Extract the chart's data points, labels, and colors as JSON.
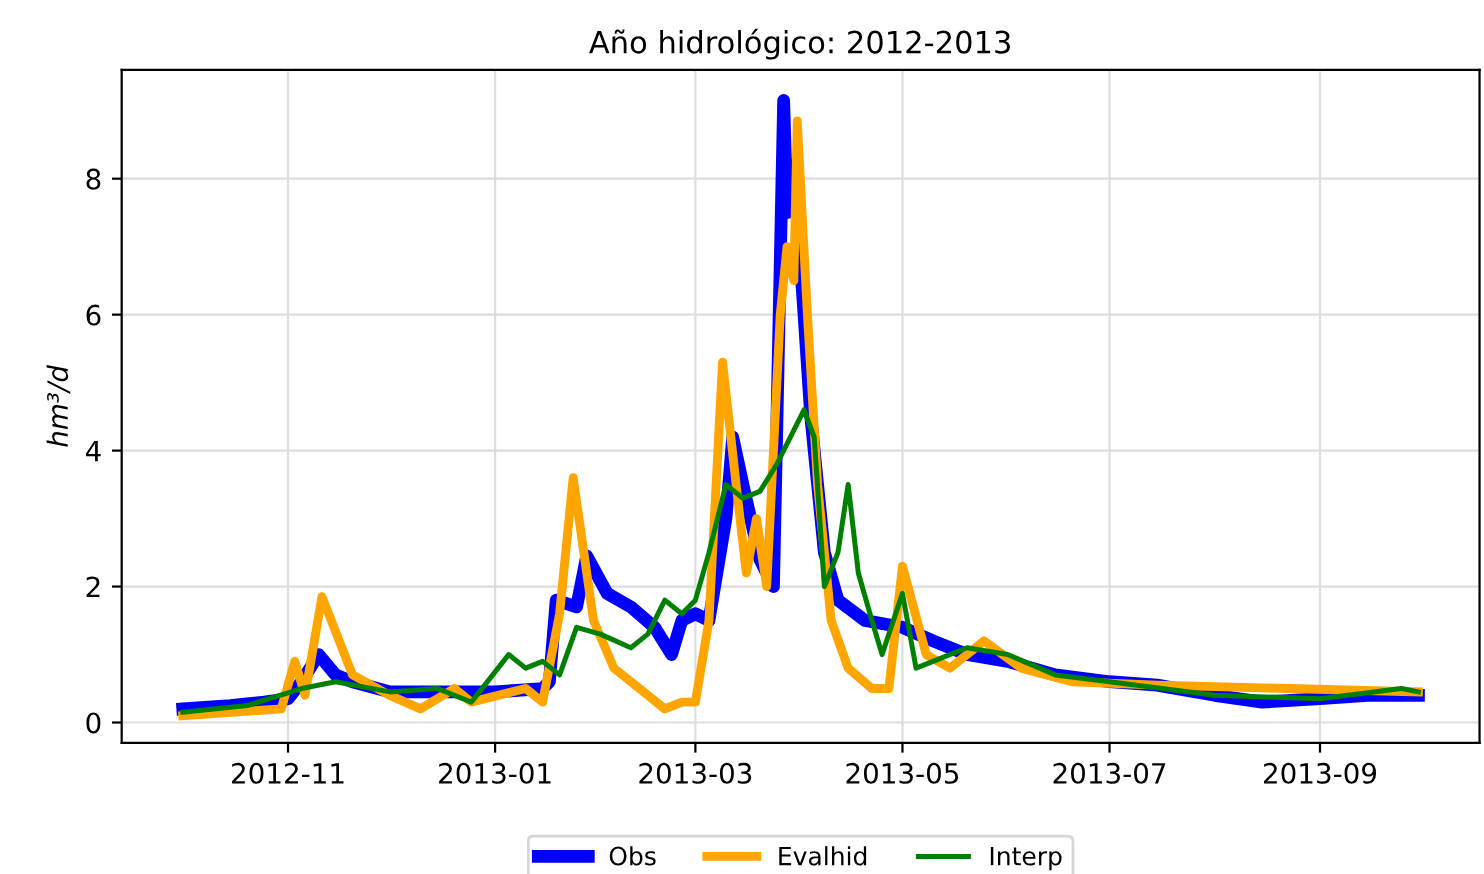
{
  "chart_data": {
    "type": "line",
    "title": "Año hidrológico: 2012-2013",
    "ylabel": "hm³/d",
    "xlim": [
      "2012-09-13",
      "2013-10-18"
    ],
    "xticks": [
      "2012-11",
      "2013-01",
      "2013-03",
      "2013-05",
      "2013-07",
      "2013-09"
    ],
    "ylim": [
      -0.3,
      9.6
    ],
    "yticks": [
      0,
      2,
      4,
      6,
      8
    ],
    "grid": true,
    "legend": "bottom",
    "line_style": "solid",
    "marker": "none",
    "series": [
      {
        "name": "Obs",
        "color": "#0000ff",
        "x": [
          "2012-10-01",
          "2012-10-15",
          "2012-10-25",
          "2012-11-01",
          "2012-11-05",
          "2012-11-10",
          "2012-11-15",
          "2012-11-20",
          "2012-12-01",
          "2012-12-15",
          "2013-01-01",
          "2013-01-15",
          "2013-01-17",
          "2013-01-19",
          "2013-01-25",
          "2013-01-28",
          "2013-02-03",
          "2013-02-10",
          "2013-02-17",
          "2013-02-22",
          "2013-02-25",
          "2013-03-01",
          "2013-03-05",
          "2013-03-10",
          "2013-03-12",
          "2013-03-15",
          "2013-03-20",
          "2013-03-24",
          "2013-03-27",
          "2013-03-28",
          "2013-03-30",
          "2013-04-02",
          "2013-04-04",
          "2013-04-08",
          "2013-04-12",
          "2013-04-20",
          "2013-05-01",
          "2013-05-10",
          "2013-05-20",
          "2013-06-01",
          "2013-06-15",
          "2013-07-01",
          "2013-07-15",
          "2013-08-01",
          "2013-08-15",
          "2013-09-01",
          "2013-09-15",
          "2013-09-30"
        ],
        "values": [
          0.2,
          0.25,
          0.3,
          0.35,
          0.6,
          1.0,
          0.7,
          0.6,
          0.45,
          0.45,
          0.45,
          0.5,
          0.6,
          1.8,
          1.7,
          2.45,
          1.9,
          1.7,
          1.4,
          1.0,
          1.5,
          1.6,
          1.5,
          3.0,
          4.2,
          3.5,
          2.4,
          2.0,
          9.15,
          7.5,
          8.2,
          6.0,
          4.5,
          2.5,
          1.8,
          1.5,
          1.4,
          1.2,
          1.0,
          0.9,
          0.7,
          0.6,
          0.55,
          0.4,
          0.3,
          0.35,
          0.4,
          0.4
        ]
      },
      {
        "name": "Evalhid",
        "color": "#ffa500",
        "x": [
          "2012-10-01",
          "2012-10-30",
          "2012-11-03",
          "2012-11-06",
          "2012-11-11",
          "2012-11-20",
          "2012-12-01",
          "2012-12-10",
          "2012-12-20",
          "2012-12-25",
          "2013-01-10",
          "2013-01-15",
          "2013-01-20",
          "2013-01-24",
          "2013-01-30",
          "2013-02-05",
          "2013-02-15",
          "2013-02-20",
          "2013-02-25",
          "2013-03-01",
          "2013-03-05",
          "2013-03-09",
          "2013-03-13",
          "2013-03-16",
          "2013-03-19",
          "2013-03-22",
          "2013-03-26",
          "2013-03-28",
          "2013-03-30",
          "2013-03-31",
          "2013-04-03",
          "2013-04-06",
          "2013-04-10",
          "2013-04-15",
          "2013-04-22",
          "2013-04-27",
          "2013-05-01",
          "2013-05-08",
          "2013-05-15",
          "2013-05-25",
          "2013-06-05",
          "2013-06-20",
          "2013-07-15",
          "2013-09-30"
        ],
        "values": [
          0.1,
          0.2,
          0.9,
          0.4,
          1.85,
          0.7,
          0.4,
          0.2,
          0.5,
          0.3,
          0.5,
          0.3,
          1.6,
          3.6,
          1.5,
          0.8,
          0.4,
          0.2,
          0.3,
          0.3,
          1.5,
          5.3,
          3.5,
          2.2,
          3.0,
          2.0,
          6.0,
          7.0,
          6.5,
          8.85,
          6.0,
          3.5,
          1.5,
          0.8,
          0.5,
          0.5,
          2.3,
          1.0,
          0.8,
          1.2,
          0.8,
          0.6,
          0.55,
          0.45
        ]
      },
      {
        "name": "Interp",
        "color": "#008000",
        "x": [
          "2012-10-01",
          "2012-10-20",
          "2012-11-05",
          "2012-11-15",
          "2012-12-01",
          "2012-12-15",
          "2012-12-25",
          "2013-01-05",
          "2013-01-10",
          "2013-01-15",
          "2013-01-20",
          "2013-01-25",
          "2013-02-01",
          "2013-02-10",
          "2013-02-15",
          "2013-02-20",
          "2013-02-25",
          "2013-03-01",
          "2013-03-05",
          "2013-03-10",
          "2013-03-15",
          "2013-03-20",
          "2013-03-25",
          "2013-04-02",
          "2013-04-05",
          "2013-04-08",
          "2013-04-12",
          "2013-04-15",
          "2013-04-18",
          "2013-04-22",
          "2013-04-25",
          "2013-05-01",
          "2013-05-05",
          "2013-05-10",
          "2013-05-20",
          "2013-06-01",
          "2013-06-15",
          "2013-07-01",
          "2013-08-01",
          "2013-09-01",
          "2013-09-25",
          "2013-09-30"
        ],
        "values": [
          0.15,
          0.25,
          0.5,
          0.6,
          0.45,
          0.5,
          0.3,
          1.0,
          0.8,
          0.9,
          0.7,
          1.4,
          1.3,
          1.1,
          1.3,
          1.8,
          1.6,
          1.8,
          2.5,
          3.5,
          3.3,
          3.4,
          3.8,
          4.6,
          4.2,
          2.0,
          2.5,
          3.5,
          2.2,
          1.5,
          1.0,
          1.9,
          0.8,
          0.9,
          1.1,
          1.0,
          0.7,
          0.6,
          0.4,
          0.35,
          0.5,
          0.45
        ]
      }
    ]
  }
}
